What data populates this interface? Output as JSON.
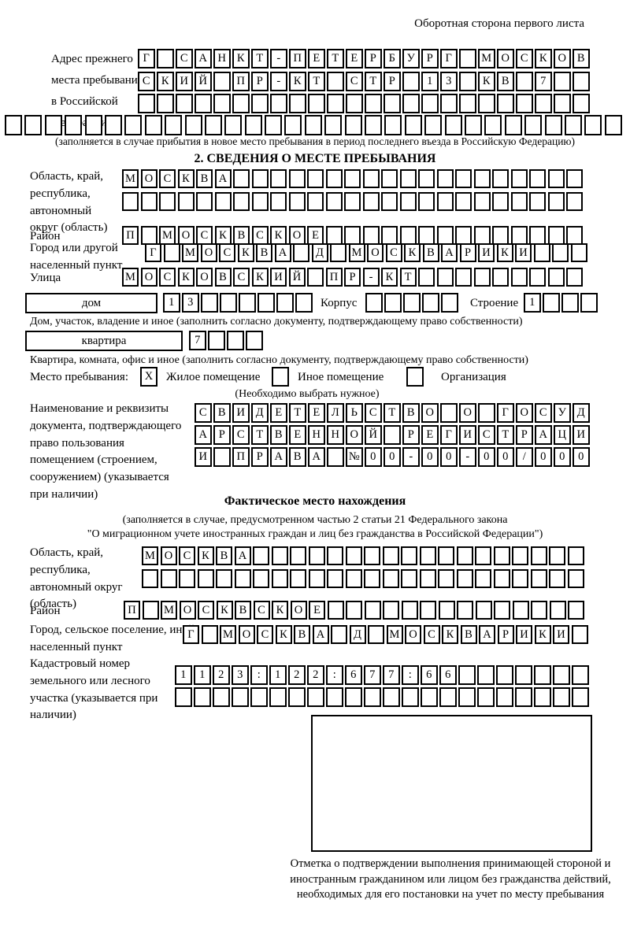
{
  "page": {
    "header_note": "Оборотная сторона первого листа",
    "section2_title": "2. СВЕДЕНИЯ О МЕСТЕ ПРЕБЫВАНИЯ",
    "factual_title": "Фактическое место нахождения",
    "factual_note_line1": "(заполняется в случае, предусмотренном частью 2 статьи 21 Федерального закона",
    "factual_note_line2": "\"О миграционном учете иностранных граждан и лиц без гражданства в Российской Федерации\")"
  },
  "prev_address": {
    "label": "Адрес прежнего места пребывания в Российской Федерации",
    "row1": {
      "text": "Г САНКТ-ПЕТЕРБУРГ МОСКОВ",
      "length": 24
    },
    "row2": {
      "text": "СКИЙ ПР-КТ СТР 13 КВ 7",
      "length": 24
    },
    "row3": {
      "text": "",
      "length": 24
    },
    "row4": {
      "text": "",
      "length": 31
    },
    "note": "(заполняется в случае прибытия в новое место пребывания в период последнего въезда в Российскую Федерацию)"
  },
  "stay_place": {
    "region": {
      "label": "Область, край, республика, автономный округ (область)",
      "row1": {
        "text": "МОСКВА",
        "length": 25
      },
      "row2": {
        "text": "",
        "length": 25
      }
    },
    "district": {
      "label": "Район",
      "row": {
        "text": "П МОСКВСКОЕ",
        "length": 25
      }
    },
    "city": {
      "label": "Город или другой населенный пункт",
      "row": {
        "text": "Г МОСКВА Д МОСКВАРИКИ",
        "length": 24
      }
    },
    "street": {
      "label": "Улица",
      "row": {
        "text": "МОСКОВСКИЙ ПР-КТ",
        "length": 25
      }
    },
    "house": {
      "box_label": "дом",
      "cells": {
        "text": "13",
        "length": 8
      },
      "korpus_label": "Корпус",
      "korpus_cells": {
        "text": "",
        "length": 5
      },
      "stroenie_label": "Строение",
      "stroenie_cells": {
        "text": "1",
        "length": 4
      }
    },
    "house_caption": "Дом, участок, владение и иное (заполнить согласно документу, подтверждающему право собственности)",
    "apartment": {
      "box_label": "квартира",
      "cells": {
        "text": "7",
        "length": 4
      }
    },
    "apartment_caption": "Квартира, комната, офис и иное (заполнить согласно документу, подтверждающему право собственности)",
    "type": {
      "label": "Место пребывания:",
      "options": [
        {
          "label": "Жилое помещение",
          "mark": "X"
        },
        {
          "label": "Иное помещение",
          "mark": ""
        },
        {
          "label": "Организация",
          "mark": ""
        }
      ],
      "note": "(Необходимо выбрать нужное)"
    },
    "document": {
      "label": "Наименование и реквизиты документа, подтверждающего право пользования помещением (строением, сооружением) (указывается при наличии)",
      "row1": {
        "text": "СВИДЕТЕЛЬСТВО О ГОСУД",
        "length": 21
      },
      "row2": {
        "text": "АРСТВЕННОЙ РЕГИСТРАЦИ",
        "length": 21
      },
      "row3": {
        "text": "И ПРАВА №00-00-00/000",
        "length": 21
      }
    }
  },
  "factual": {
    "region": {
      "label": "Область, край, республика, автономный округ (область)",
      "row1": {
        "text": "МОСКВА",
        "length": 24
      },
      "row2": {
        "text": "",
        "length": 24
      }
    },
    "district": {
      "label": "Район",
      "row": {
        "text": "П МОСКВСКОЕ",
        "length": 25
      }
    },
    "city": {
      "label": "Город, сельское поселение, иной населенный пункт",
      "row": {
        "text": "Г МОСКВА Д МОСКВАРИКИ",
        "length": 22
      }
    },
    "cadastral": {
      "label": "Кадастровый номер земельного или лесного участка (указывается при наличии)",
      "row1": {
        "text": "1123:122:677:66",
        "length": 22
      },
      "row2": {
        "text": "",
        "length": 22
      }
    }
  },
  "stamp": {
    "caption": "Отметка о подтверждении выполнения принимающей стороной и иностранным гражданином или лицом без гражданства действий, необходимых для его постановки на учет по месту пребывания"
  }
}
